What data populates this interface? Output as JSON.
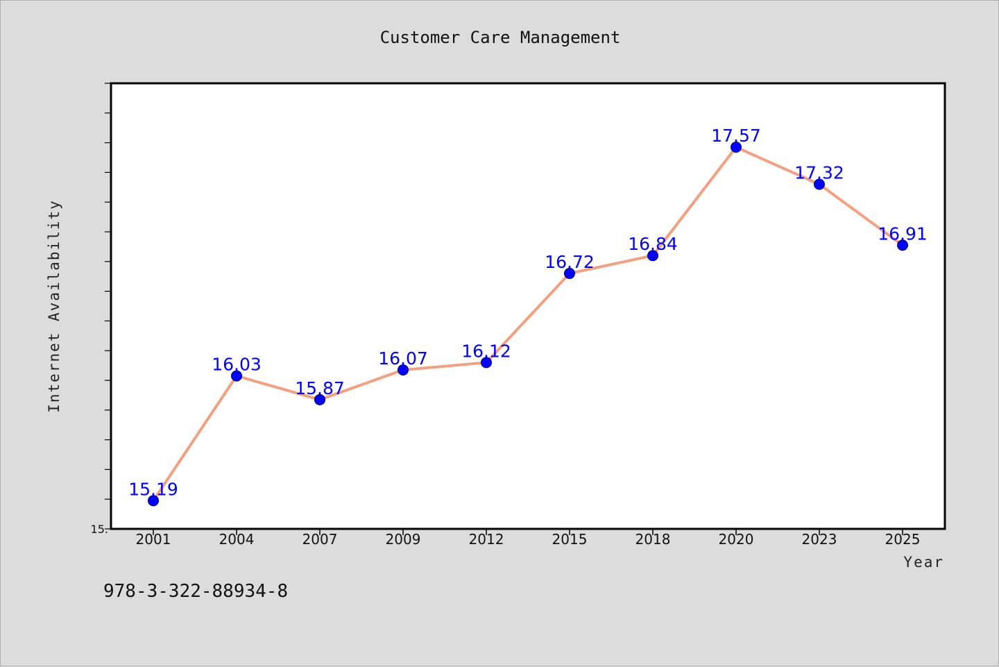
{
  "chart_data": {
    "type": "line",
    "title": "Customer Care Management",
    "xlabel": "Year",
    "ylabel": "Internet Availability",
    "categories": [
      "2001",
      "2004",
      "2007",
      "2009",
      "2012",
      "2015",
      "2018",
      "2020",
      "2023",
      "2025"
    ],
    "series": [
      {
        "values": [
          15.19,
          16.03,
          15.87,
          16.07,
          16.12,
          16.72,
          16.84,
          17.57,
          17.32,
          16.91
        ],
        "labels": [
          "15.19",
          "16.03",
          "15.87",
          "16.07",
          "16.12",
          "16.72",
          "16.84",
          "17.57",
          "17.32",
          "16.91"
        ],
        "line_color": "#f4a07f",
        "marker_color": "#0000ff"
      }
    ],
    "ylim": [
      15.0,
      18.0
    ],
    "yticks_labeled": [
      "15."
    ],
    "grid": false,
    "legend": "none"
  },
  "footnote": "978-3-322-88934-8"
}
